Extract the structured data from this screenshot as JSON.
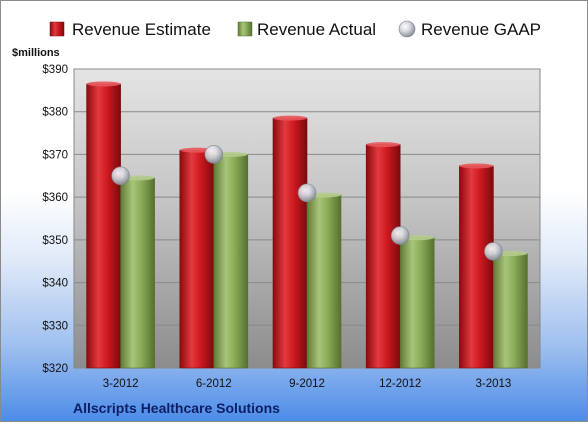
{
  "chart_data": {
    "type": "bar",
    "categories": [
      "3-2012",
      "6-2012",
      "9-2012",
      "12-2012",
      "3-2013"
    ],
    "series": [
      {
        "name": "Revenue Estimate",
        "values": [
          386.5,
          371.0,
          378.5,
          372.3,
          367.3
        ],
        "color": "#d4141c"
      },
      {
        "name": "Revenue Actual",
        "values": [
          364.5,
          370.0,
          360.5,
          350.5,
          346.8
        ],
        "color": "#8cad5a"
      }
    ],
    "markers": [
      {
        "name": "Revenue GAAP",
        "values": [
          365.0,
          370.0,
          361.0,
          351.0,
          347.3
        ],
        "color": "#b8bcc4"
      }
    ],
    "ylabel": "$millions",
    "ylim": [
      320,
      390
    ],
    "yticks": [
      320,
      330,
      340,
      350,
      360,
      370,
      380,
      390
    ],
    "ytick_labels": [
      "$320",
      "$330",
      "$340",
      "$350",
      "$360",
      "$370",
      "$380",
      "$390"
    ],
    "grid": true,
    "legend_position": "top",
    "company": "Allscripts Healthcare Solutions"
  }
}
